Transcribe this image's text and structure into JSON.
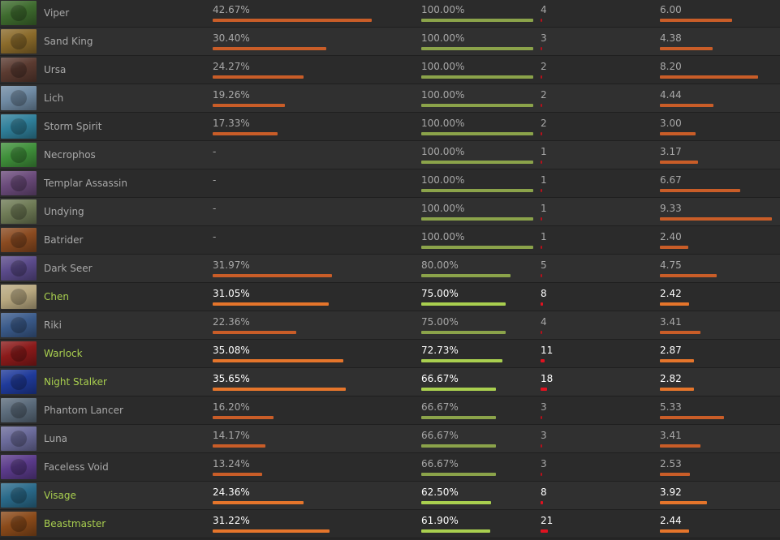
{
  "colors": {
    "background": "#262626",
    "row_odd": "#2b2b2b",
    "row_even": "#303030",
    "text": "#a8a8a8",
    "highlight_text": "#ffffff",
    "highlight_name": "#a9cf4f",
    "bar_orange": "#c95d28",
    "bar_green": "#8ba34a",
    "bar_red": "#b8101a"
  },
  "max": {
    "pick_rate": 45,
    "matches": 21,
    "kda": 9.33
  },
  "rows": [
    {
      "hero": "Viper",
      "pick_rate": "42.67%",
      "win_rate": "100.00%",
      "matches": "4",
      "kda": "6.00",
      "highlight": false,
      "avatar_icon": "viper-portrait-icon",
      "avatar_color": "#3e6b2e"
    },
    {
      "hero": "Sand King",
      "pick_rate": "30.40%",
      "win_rate": "100.00%",
      "matches": "3",
      "kda": "4.38",
      "highlight": false,
      "avatar_icon": "sand-king-portrait-icon",
      "avatar_color": "#8a6a2a"
    },
    {
      "hero": "Ursa",
      "pick_rate": "24.27%",
      "win_rate": "100.00%",
      "matches": "2",
      "kda": "8.20",
      "highlight": false,
      "avatar_icon": "ursa-portrait-icon",
      "avatar_color": "#5a3a30"
    },
    {
      "hero": "Lich",
      "pick_rate": "19.26%",
      "win_rate": "100.00%",
      "matches": "2",
      "kda": "4.44",
      "highlight": false,
      "avatar_icon": "lich-portrait-icon",
      "avatar_color": "#6f8aa3"
    },
    {
      "hero": "Storm Spirit",
      "pick_rate": "17.33%",
      "win_rate": "100.00%",
      "matches": "2",
      "kda": "3.00",
      "highlight": false,
      "avatar_icon": "storm-spirit-portrait-icon",
      "avatar_color": "#2f7f9a"
    },
    {
      "hero": "Necrophos",
      "pick_rate": "-",
      "win_rate": "100.00%",
      "matches": "1",
      "kda": "3.17",
      "highlight": false,
      "avatar_icon": "necrophos-portrait-icon",
      "avatar_color": "#3f8f3a"
    },
    {
      "hero": "Templar Assassin",
      "pick_rate": "-",
      "win_rate": "100.00%",
      "matches": "1",
      "kda": "6.67",
      "highlight": false,
      "avatar_icon": "templar-assassin-portrait-icon",
      "avatar_color": "#6a4a7a"
    },
    {
      "hero": "Undying",
      "pick_rate": "-",
      "win_rate": "100.00%",
      "matches": "1",
      "kda": "9.33",
      "highlight": false,
      "avatar_icon": "undying-portrait-icon",
      "avatar_color": "#6e7a55"
    },
    {
      "hero": "Batrider",
      "pick_rate": "-",
      "win_rate": "100.00%",
      "matches": "1",
      "kda": "2.40",
      "highlight": false,
      "avatar_icon": "batrider-portrait-icon",
      "avatar_color": "#8a4a20"
    },
    {
      "hero": "Dark Seer",
      "pick_rate": "31.97%",
      "win_rate": "80.00%",
      "matches": "5",
      "kda": "4.75",
      "highlight": false,
      "avatar_icon": "dark-seer-portrait-icon",
      "avatar_color": "#5a4a8a"
    },
    {
      "hero": "Chen",
      "pick_rate": "31.05%",
      "win_rate": "75.00%",
      "matches": "8",
      "kda": "2.42",
      "highlight": true,
      "avatar_icon": "chen-portrait-icon",
      "avatar_color": "#b8a880"
    },
    {
      "hero": "Riki",
      "pick_rate": "22.36%",
      "win_rate": "75.00%",
      "matches": "4",
      "kda": "3.41",
      "highlight": false,
      "avatar_icon": "riki-portrait-icon",
      "avatar_color": "#3a5a8a"
    },
    {
      "hero": "Warlock",
      "pick_rate": "35.08%",
      "win_rate": "72.73%",
      "matches": "11",
      "kda": "2.87",
      "highlight": true,
      "avatar_icon": "warlock-portrait-icon",
      "avatar_color": "#8a1a1a"
    },
    {
      "hero": "Night Stalker",
      "pick_rate": "35.65%",
      "win_rate": "66.67%",
      "matches": "18",
      "kda": "2.82",
      "highlight": true,
      "avatar_icon": "night-stalker-portrait-icon",
      "avatar_color": "#1f3a9a"
    },
    {
      "hero": "Phantom Lancer",
      "pick_rate": "16.20%",
      "win_rate": "66.67%",
      "matches": "3",
      "kda": "5.33",
      "highlight": false,
      "avatar_icon": "phantom-lancer-portrait-icon",
      "avatar_color": "#5a6a7a"
    },
    {
      "hero": "Luna",
      "pick_rate": "14.17%",
      "win_rate": "66.67%",
      "matches": "3",
      "kda": "3.41",
      "highlight": false,
      "avatar_icon": "luna-portrait-icon",
      "avatar_color": "#6a6a9a"
    },
    {
      "hero": "Faceless Void",
      "pick_rate": "13.24%",
      "win_rate": "66.67%",
      "matches": "3",
      "kda": "2.53",
      "highlight": false,
      "avatar_icon": "faceless-void-portrait-icon",
      "avatar_color": "#5a3a8a"
    },
    {
      "hero": "Visage",
      "pick_rate": "24.36%",
      "win_rate": "62.50%",
      "matches": "8",
      "kda": "3.92",
      "highlight": true,
      "avatar_icon": "visage-portrait-icon",
      "avatar_color": "#2a6a8a"
    },
    {
      "hero": "Beastmaster",
      "pick_rate": "31.22%",
      "win_rate": "61.90%",
      "matches": "21",
      "kda": "2.44",
      "highlight": true,
      "avatar_icon": "beastmaster-portrait-icon",
      "avatar_color": "#8a4a1a"
    }
  ]
}
